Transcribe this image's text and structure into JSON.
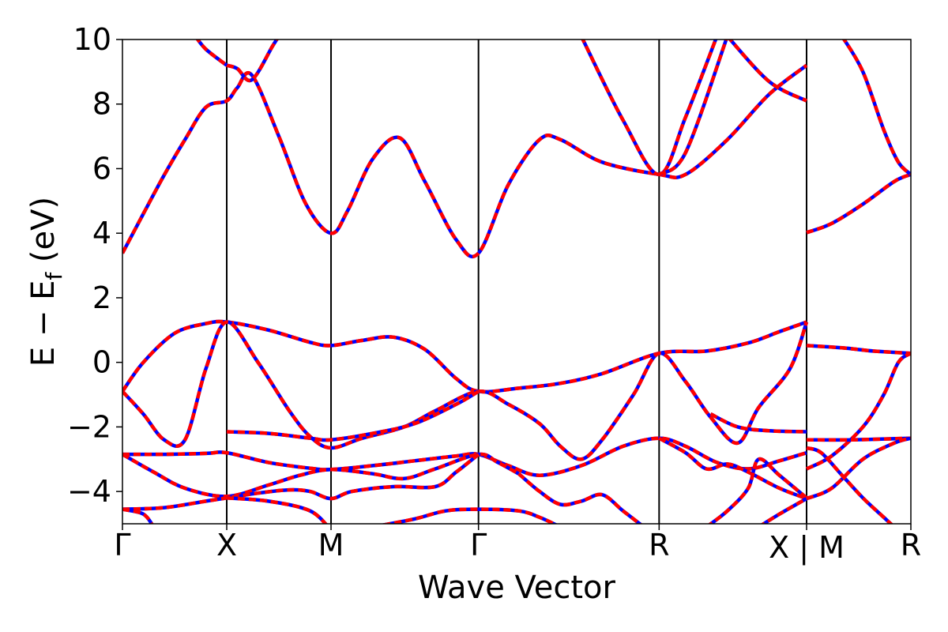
{
  "chart_data": {
    "type": "line",
    "title": "",
    "xlabel": "Wave Vector",
    "ylabel_main": "E − E",
    "ylabel_sub": "f",
    "ylabel_unit": " (eV)",
    "ylim": [
      -5,
      10
    ],
    "y_ticks": [
      -4,
      -2,
      0,
      2,
      4,
      6,
      8,
      10
    ],
    "y_tick_labels": [
      "−4",
      "−2",
      "0",
      "2",
      "4",
      "6",
      "8",
      "10"
    ],
    "k_points": [
      {
        "label": "Γ",
        "x": 0.0
      },
      {
        "label": "X",
        "x": 0.5
      },
      {
        "label": "M",
        "x": 1.0
      },
      {
        "label": "Γ",
        "x": 1.707
      },
      {
        "label": "R",
        "x": 2.573
      },
      {
        "label": "X | M",
        "x": 3.28
      },
      {
        "label": "R",
        "x": 3.78
      }
    ],
    "xlim": [
      0,
      3.78
    ],
    "grid": false,
    "colors": {
      "band_primary": "#ff0000",
      "band_overlay": "#0000ff",
      "vline": "#000000"
    },
    "series": [
      {
        "values": [
          [
            0,
            3.38
          ],
          [
            0.1,
            4.6
          ],
          [
            0.2,
            5.8
          ],
          [
            0.3,
            6.9
          ],
          [
            0.4,
            7.9
          ],
          [
            0.5,
            8.1
          ],
          [
            0.55,
            8.5
          ],
          [
            0.62,
            8.9
          ],
          [
            0.75,
            7.0
          ],
          [
            0.88,
            4.9
          ],
          [
            1.0,
            4.0
          ],
          [
            1.08,
            4.7
          ],
          [
            1.2,
            6.3
          ],
          [
            1.33,
            6.95
          ],
          [
            1.45,
            5.6
          ],
          [
            1.6,
            3.8
          ],
          [
            1.707,
            3.38
          ],
          [
            1.85,
            5.5
          ],
          [
            2.0,
            6.9
          ],
          [
            2.1,
            6.9
          ],
          [
            2.3,
            6.2
          ],
          [
            2.573,
            5.82
          ],
          [
            2.7,
            5.82
          ],
          [
            2.9,
            6.9
          ],
          [
            3.1,
            8.3
          ],
          [
            3.28,
            9.2
          ]
        ]
      },
      {
        "values": [
          [
            0.5,
            9.2
          ],
          [
            0.55,
            9.1
          ],
          [
            0.62,
            8.75
          ],
          [
            0.72,
            9.8
          ],
          [
            0.75,
            10.1
          ]
        ]
      },
      {
        "values": [
          [
            0.35,
            10.1
          ],
          [
            0.4,
            9.7
          ],
          [
            0.5,
            9.2
          ]
        ]
      },
      {
        "values": [
          [
            2.2,
            10.1
          ],
          [
            2.4,
            7.5
          ],
          [
            2.573,
            5.82
          ],
          [
            2.7,
            7.6
          ],
          [
            2.85,
            10.1
          ]
        ]
      },
      {
        "values": [
          [
            2.573,
            5.82
          ],
          [
            2.7,
            6.5
          ],
          [
            2.9,
            10.1
          ]
        ]
      },
      {
        "values": [
          [
            2.9,
            10.1
          ],
          [
            3.1,
            8.7
          ],
          [
            3.28,
            8.1
          ]
        ]
      },
      {
        "values": [
          [
            3.28,
            4.02
          ],
          [
            3.4,
            4.3
          ],
          [
            3.55,
            4.9
          ],
          [
            3.7,
            5.6
          ],
          [
            3.78,
            5.82
          ]
        ]
      },
      {
        "values": [
          [
            3.45,
            10.1
          ],
          [
            3.55,
            9.0
          ],
          [
            3.65,
            7.2
          ],
          [
            3.72,
            6.2
          ],
          [
            3.78,
            5.82
          ]
        ]
      },
      {
        "values": [
          [
            0,
            -0.9
          ],
          [
            0.1,
            0.0
          ],
          [
            0.25,
            0.9
          ],
          [
            0.4,
            1.2
          ],
          [
            0.5,
            1.25
          ],
          [
            0.7,
            1.0
          ],
          [
            0.9,
            0.62
          ],
          [
            1.0,
            0.52
          ],
          [
            1.15,
            0.68
          ],
          [
            1.3,
            0.78
          ],
          [
            1.45,
            0.4
          ],
          [
            1.6,
            -0.5
          ],
          [
            1.707,
            -0.9
          ],
          [
            1.9,
            -0.8
          ],
          [
            2.1,
            -0.65
          ],
          [
            2.3,
            -0.35
          ],
          [
            2.573,
            0.28
          ],
          [
            2.8,
            0.35
          ],
          [
            3.0,
            0.6
          ],
          [
            3.15,
            0.95
          ],
          [
            3.28,
            1.25
          ]
        ]
      },
      {
        "values": [
          [
            0,
            -0.9
          ],
          [
            0.1,
            -1.6
          ],
          [
            0.2,
            -2.4
          ],
          [
            0.3,
            -2.4
          ],
          [
            0.4,
            -0.2
          ],
          [
            0.5,
            1.25
          ],
          [
            0.65,
            0.0
          ],
          [
            0.8,
            -1.5
          ],
          [
            0.9,
            -2.3
          ],
          [
            1.0,
            -2.65
          ],
          [
            1.15,
            -2.35
          ],
          [
            1.35,
            -2.0
          ],
          [
            1.5,
            -1.5
          ],
          [
            1.707,
            -0.9
          ],
          [
            1.85,
            -1.3
          ],
          [
            2.0,
            -1.9
          ],
          [
            2.1,
            -2.6
          ],
          [
            2.2,
            -3.0
          ],
          [
            2.3,
            -2.4
          ],
          [
            2.45,
            -1.0
          ],
          [
            2.573,
            0.28
          ],
          [
            2.7,
            -0.6
          ],
          [
            2.82,
            -1.7
          ],
          [
            2.95,
            -2.5
          ],
          [
            3.05,
            -1.4
          ],
          [
            3.2,
            -0.2
          ],
          [
            3.28,
            1.25
          ]
        ]
      },
      {
        "values": [
          [
            0.5,
            -2.15
          ],
          [
            0.7,
            -2.2
          ],
          [
            0.9,
            -2.35
          ],
          [
            1.0,
            -2.4
          ],
          [
            1.2,
            -2.2
          ],
          [
            1.4,
            -1.9
          ],
          [
            1.6,
            -1.3
          ],
          [
            1.707,
            -0.9
          ]
        ]
      },
      {
        "values": [
          [
            2.82,
            -1.6
          ],
          [
            2.95,
            -2.0
          ],
          [
            3.1,
            -2.12
          ],
          [
            3.28,
            -2.15
          ]
        ]
      },
      {
        "values": [
          [
            0,
            -2.85
          ],
          [
            0.2,
            -2.85
          ],
          [
            0.4,
            -2.82
          ],
          [
            0.5,
            -2.8
          ],
          [
            0.7,
            -3.1
          ],
          [
            0.9,
            -3.28
          ],
          [
            1.0,
            -3.32
          ],
          [
            1.2,
            -3.2
          ],
          [
            1.4,
            -3.05
          ],
          [
            1.6,
            -2.9
          ],
          [
            1.707,
            -2.85
          ],
          [
            1.85,
            -3.2
          ],
          [
            2.0,
            -3.5
          ],
          [
            2.2,
            -3.2
          ],
          [
            2.4,
            -2.6
          ],
          [
            2.573,
            -2.35
          ],
          [
            2.7,
            -2.6
          ],
          [
            2.85,
            -3.1
          ],
          [
            3.0,
            -3.3
          ],
          [
            3.15,
            -3.05
          ],
          [
            3.28,
            -2.8
          ]
        ]
      },
      {
        "values": [
          [
            0,
            -2.85
          ],
          [
            0.15,
            -3.4
          ],
          [
            0.3,
            -3.9
          ],
          [
            0.5,
            -4.15
          ],
          [
            0.7,
            -3.8
          ],
          [
            0.85,
            -3.5
          ],
          [
            1.0,
            -3.32
          ],
          [
            1.2,
            -3.45
          ],
          [
            1.35,
            -3.6
          ],
          [
            1.5,
            -3.3
          ],
          [
            1.707,
            -2.85
          ],
          [
            1.8,
            -3.1
          ],
          [
            1.9,
            -3.45
          ]
        ]
      },
      {
        "values": [
          [
            2.573,
            -2.35
          ],
          [
            2.7,
            -2.8
          ],
          [
            2.8,
            -3.3
          ],
          [
            2.9,
            -3.15
          ],
          [
            3.0,
            -3.4
          ],
          [
            3.15,
            -3.9
          ],
          [
            3.28,
            -4.22
          ]
        ]
      },
      {
        "values": [
          [
            0,
            -4.55
          ],
          [
            0.2,
            -4.5
          ],
          [
            0.4,
            -4.3
          ],
          [
            0.5,
            -4.2
          ],
          [
            0.65,
            -4.05
          ],
          [
            0.8,
            -3.95
          ],
          [
            0.9,
            -4.0
          ],
          [
            1.0,
            -4.22
          ],
          [
            1.1,
            -4.0
          ],
          [
            1.3,
            -3.85
          ],
          [
            1.5,
            -3.85
          ],
          [
            1.6,
            -3.4
          ],
          [
            1.707,
            -2.85
          ]
        ]
      },
      {
        "values": [
          [
            0.5,
            -4.2
          ],
          [
            0.7,
            -4.3
          ],
          [
            0.9,
            -4.6
          ],
          [
            1.0,
            -5.2
          ]
        ]
      },
      {
        "values": [
          [
            0,
            -4.55
          ],
          [
            0.1,
            -4.7
          ],
          [
            0.15,
            -5.1
          ]
        ]
      },
      {
        "values": [
          [
            1.2,
            -5.1
          ],
          [
            1.4,
            -4.85
          ],
          [
            1.55,
            -4.6
          ],
          [
            1.707,
            -4.55
          ],
          [
            1.9,
            -4.6
          ],
          [
            2.0,
            -4.8
          ],
          [
            2.1,
            -5.1
          ]
        ]
      },
      {
        "values": [
          [
            1.9,
            -3.45
          ],
          [
            2.0,
            -4.0
          ],
          [
            2.1,
            -4.4
          ],
          [
            2.2,
            -4.3
          ],
          [
            2.3,
            -4.1
          ],
          [
            2.4,
            -4.6
          ],
          [
            2.5,
            -5.1
          ]
        ]
      },
      {
        "values": [
          [
            2.8,
            -5.1
          ],
          [
            2.9,
            -4.6
          ],
          [
            3.0,
            -3.9
          ],
          [
            3.05,
            -3.0
          ],
          [
            3.15,
            -3.5
          ],
          [
            3.28,
            -4.2
          ]
        ]
      },
      {
        "values": [
          [
            3.05,
            -5.1
          ],
          [
            3.15,
            -4.7
          ],
          [
            3.28,
            -4.22
          ]
        ]
      },
      {
        "values": [
          [
            3.28,
            0.52
          ],
          [
            3.45,
            0.45
          ],
          [
            3.6,
            0.35
          ],
          [
            3.78,
            0.28
          ]
        ]
      },
      {
        "values": [
          [
            3.28,
            -3.3
          ],
          [
            3.4,
            -2.9
          ],
          [
            3.55,
            -2.0
          ],
          [
            3.65,
            -1.0
          ],
          [
            3.72,
            0.0
          ],
          [
            3.78,
            0.28
          ]
        ]
      },
      {
        "values": [
          [
            3.28,
            -2.4
          ],
          [
            3.5,
            -2.4
          ],
          [
            3.78,
            -2.35
          ]
        ]
      },
      {
        "values": [
          [
            3.28,
            -4.22
          ],
          [
            3.4,
            -3.9
          ],
          [
            3.55,
            -3.0
          ],
          [
            3.7,
            -2.5
          ],
          [
            3.78,
            -2.35
          ]
        ]
      },
      {
        "values": [
          [
            3.28,
            -2.65
          ],
          [
            3.35,
            -2.8
          ],
          [
            3.45,
            -3.5
          ],
          [
            3.55,
            -4.2
          ],
          [
            3.65,
            -4.8
          ],
          [
            3.7,
            -5.1
          ]
        ]
      }
    ]
  }
}
